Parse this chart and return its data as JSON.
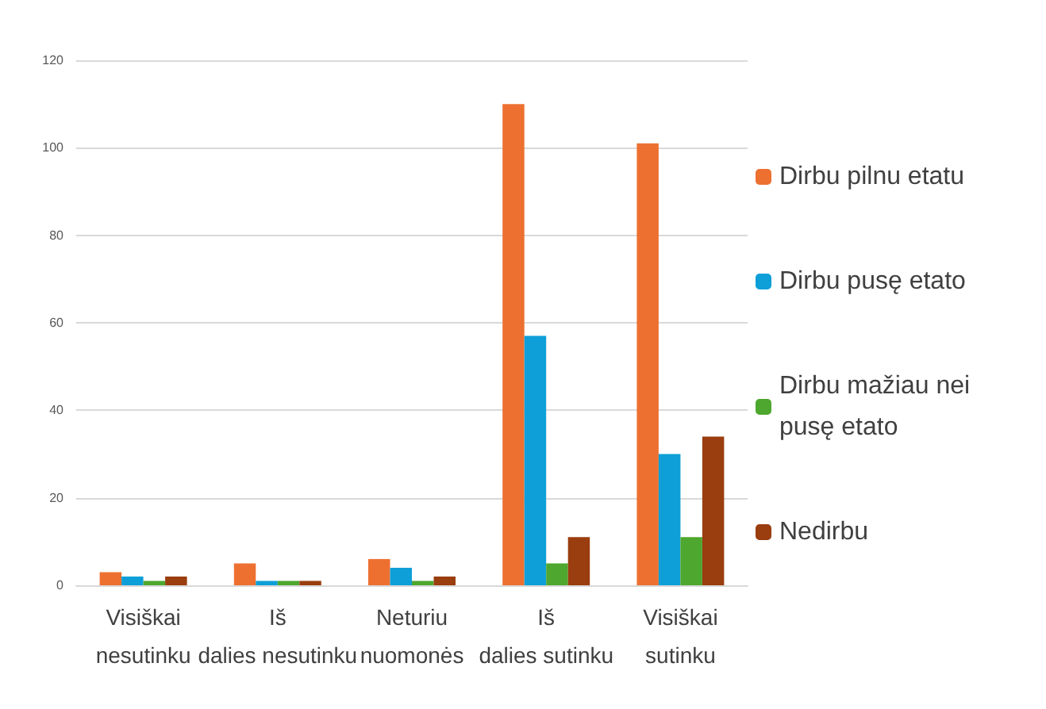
{
  "chart_data": {
    "type": "bar",
    "categories": [
      "Visiškai nesutinku",
      "Iš dalies nesutinku",
      "Neturiu nuomonės",
      "Iš dalies sutinku",
      "Visiškai sutinku"
    ],
    "series": [
      {
        "name": "Dirbu pilnu etatu",
        "color": "#ed7031",
        "values": [
          3,
          5,
          6,
          110,
          101
        ]
      },
      {
        "name": "Dirbu pusę etato",
        "color": "#0e9fd8",
        "values": [
          2,
          1,
          4,
          57,
          30
        ]
      },
      {
        "name": "Dirbu mažiau nei pusę etato",
        "color": "#4ea72e",
        "values": [
          1,
          1,
          1,
          5,
          11
        ]
      },
      {
        "name": "Nedirbu",
        "color": "#9a3d0f",
        "values": [
          2,
          1,
          2,
          11,
          34
        ]
      }
    ],
    "ylim": [
      0,
      120
    ],
    "yticks": [
      0,
      20,
      40,
      60,
      80,
      100,
      120
    ],
    "grid": "y",
    "legend": "right"
  }
}
